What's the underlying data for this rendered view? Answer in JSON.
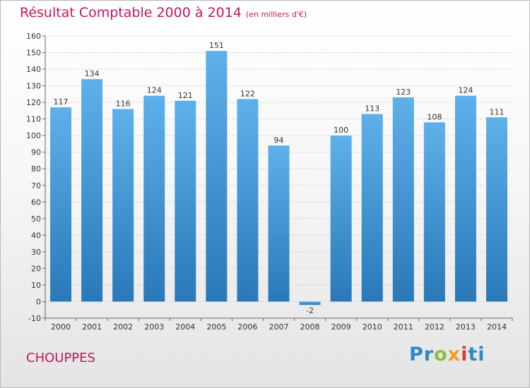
{
  "title": "Résultat Comptable 2000 à 2014",
  "subtitle": "(en milliers d'€)",
  "commune": "CHOUPPES",
  "logo": {
    "p1": "Pr",
    "p2": "o",
    "p3": "x",
    "p4": "i",
    "p5": "ti"
  },
  "colors": {
    "bar_top": "#5eb0ea",
    "bar_bottom": "#2a78b8",
    "title": "#c2185b"
  },
  "chart_data": {
    "type": "bar",
    "categories": [
      "2000",
      "2001",
      "2002",
      "2003",
      "2004",
      "2005",
      "2006",
      "2007",
      "2008",
      "2009",
      "2010",
      "2011",
      "2012",
      "2013",
      "2014"
    ],
    "values": [
      117,
      134,
      116,
      124,
      121,
      151,
      122,
      94,
      -2,
      100,
      113,
      123,
      108,
      124,
      111
    ],
    "ylim": [
      -10,
      160
    ],
    "yticks": [
      -10,
      0,
      10,
      20,
      30,
      40,
      50,
      60,
      70,
      80,
      90,
      100,
      110,
      120,
      130,
      140,
      150,
      160
    ],
    "grid": true,
    "legend": "none"
  }
}
